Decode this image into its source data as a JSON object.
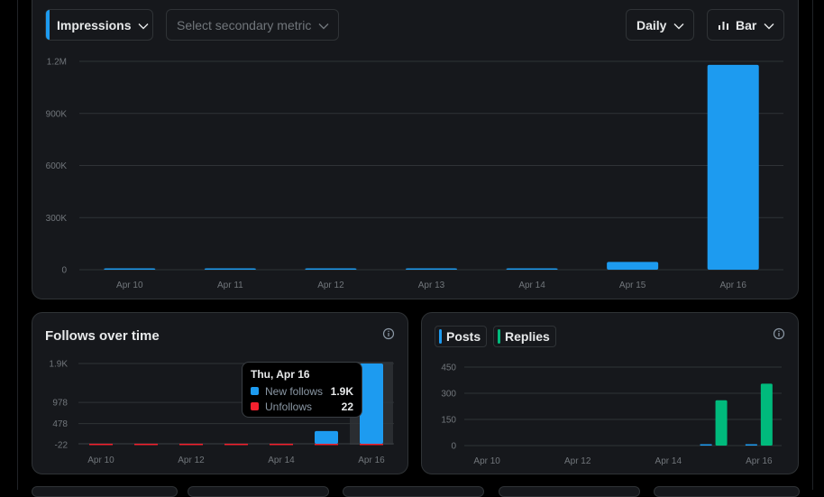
{
  "colors": {
    "blue": "#1d9bf0",
    "green": "#00ba7c",
    "red": "#f4212e",
    "grid": "#2f3336",
    "axis_text": "#71767b"
  },
  "controls": {
    "primary_metric": "Impressions",
    "secondary_metric_placeholder": "Select secondary metric",
    "interval": "Daily",
    "chart_type": "Bar"
  },
  "follows_card": {
    "title": "Follows over time"
  },
  "posts_card": {
    "legend": [
      "Posts",
      "Replies"
    ]
  },
  "tooltip": {
    "title": "Thu, Apr 16",
    "rows": [
      {
        "name": "New follows",
        "value": "1.9K"
      },
      {
        "name": "Unfollows",
        "value": "22"
      }
    ]
  },
  "chart_data": [
    {
      "type": "bar",
      "title": "Impressions",
      "categories": [
        "Apr 10",
        "Apr 11",
        "Apr 12",
        "Apr 13",
        "Apr 14",
        "Apr 15",
        "Apr 16"
      ],
      "series": [
        {
          "name": "Impressions",
          "values": [
            2000,
            1500,
            1800,
            1200,
            1600,
            45000,
            1180000
          ]
        }
      ],
      "yticks": [
        0,
        300000,
        600000,
        900000,
        1200000
      ],
      "ytick_labels": [
        "0",
        "300K",
        "600K",
        "900K",
        "1.2M"
      ],
      "ylim": [
        0,
        1200000
      ]
    },
    {
      "type": "bar",
      "title": "Follows over time",
      "categories": [
        "Apr 10",
        "Apr 11",
        "Apr 12",
        "Apr 13",
        "Apr 14",
        "Apr 15",
        "Apr 16"
      ],
      "xtick_labels": [
        "Apr 10",
        "Apr 12",
        "Apr 14",
        "Apr 16"
      ],
      "series": [
        {
          "name": "New follows",
          "values": [
            0,
            0,
            0,
            0,
            0,
            300,
            1900
          ]
        },
        {
          "name": "Unfollows",
          "values": [
            -22,
            -22,
            -22,
            -10,
            -10,
            -15,
            -22
          ]
        }
      ],
      "yticks": [
        -22,
        478,
        978,
        1900
      ],
      "ytick_labels": [
        "-22",
        "478",
        "978",
        "1.9K"
      ],
      "ylim": [
        -22,
        1900
      ]
    },
    {
      "type": "bar",
      "title": "Posts and Replies",
      "categories": [
        "Apr 10",
        "Apr 11",
        "Apr 12",
        "Apr 13",
        "Apr 14",
        "Apr 15",
        "Apr 16"
      ],
      "xtick_labels": [
        "Apr 10",
        "Apr 12",
        "Apr 14",
        "Apr 16"
      ],
      "series": [
        {
          "name": "Posts",
          "values": [
            0,
            0,
            0,
            0,
            0,
            3,
            3
          ]
        },
        {
          "name": "Replies",
          "values": [
            0,
            0,
            0,
            0,
            0,
            260,
            355
          ]
        }
      ],
      "yticks": [
        0,
        150,
        300,
        450
      ],
      "ytick_labels": [
        "0",
        "150",
        "300",
        "450"
      ],
      "ylim": [
        0,
        450
      ]
    }
  ]
}
